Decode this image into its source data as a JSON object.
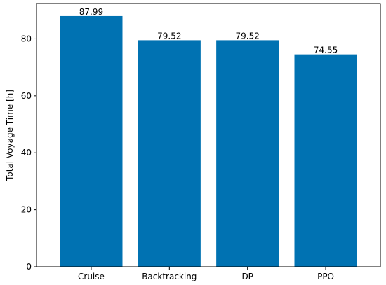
{
  "chart_data": {
    "type": "bar",
    "title": "",
    "xlabel": "",
    "ylabel": "Total Voyage Time [h]",
    "categories": [
      "Cruise",
      "Backtracking",
      "DP",
      "PPO"
    ],
    "values": [
      87.99,
      79.52,
      79.52,
      74.55
    ],
    "data_labels": [
      "87.99",
      "79.52",
      "79.52",
      "74.55"
    ],
    "ylim": [
      0,
      92.4
    ],
    "yticks": [
      0,
      20,
      40,
      60,
      80
    ],
    "ytick_labels": [
      "0",
      "20",
      "40",
      "60",
      "80"
    ],
    "bar_color": "#0072b2",
    "grid": false,
    "legend": "none"
  }
}
